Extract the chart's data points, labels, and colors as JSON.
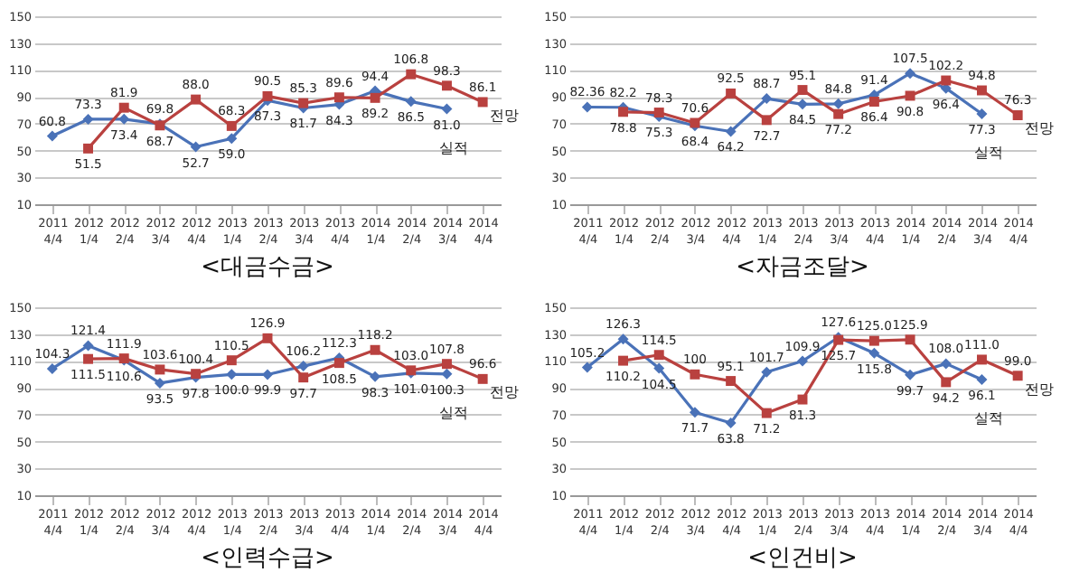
{
  "chart_data": [
    {
      "type": "line",
      "title": "<대금수금>",
      "categories": [
        "2011 4/4",
        "2012 1/4",
        "2012 2/4",
        "2012 3/4",
        "2012 4/4",
        "2013 1/4",
        "2013 2/4",
        "2013 3/4",
        "2013 4/4",
        "2014 1/4",
        "2014 2/4",
        "2014 3/4",
        "2014 4/4"
      ],
      "series": [
        {
          "name": "실적",
          "color": "#4a72b8",
          "marker": "diamond",
          "values": [
            60.8,
            73.3,
            73.4,
            69.8,
            52.7,
            59.0,
            87.3,
            81.7,
            84.3,
            94.4,
            86.5,
            81.0,
            null
          ],
          "value_labels": [
            "60.8",
            "73.3",
            "73.4",
            "69.8",
            "52.7",
            "59.0",
            "87.3",
            "81.7",
            "84.3",
            "94.4",
            "86.5",
            "81.0",
            null
          ]
        },
        {
          "name": "전망",
          "color": "#b9413f",
          "marker": "square",
          "values": [
            null,
            51.5,
            81.9,
            68.7,
            88.0,
            68.3,
            90.5,
            85.3,
            89.6,
            89.2,
            106.8,
            98.3,
            86.1
          ],
          "value_labels": [
            null,
            "51.5",
            "81.9",
            "68.7",
            "88.0",
            "68.3",
            "90.5",
            "85.3",
            "89.6",
            "89.2",
            "106.8",
            "98.3",
            "86.1"
          ]
        }
      ],
      "ylim": [
        10,
        150
      ],
      "yticks": [
        10,
        30,
        50,
        70,
        90,
        110,
        130,
        150
      ],
      "grid": "y",
      "legend": false
    },
    {
      "type": "line",
      "title": "<자금조달>",
      "categories": [
        "2011 4/4",
        "2012 1/4",
        "2012 2/4",
        "2012 3/4",
        "2012 4/4",
        "2013 1/4",
        "2013 2/4",
        "2013 3/4",
        "2013 4/4",
        "2014 1/4",
        "2014 2/4",
        "2014 3/4",
        "2014 4/4"
      ],
      "series": [
        {
          "name": "실적",
          "color": "#4a72b8",
          "marker": "diamond",
          "values": [
            82.36,
            82.2,
            75.3,
            68.4,
            64.2,
            88.7,
            84.5,
            84.8,
            91.4,
            107.5,
            96.4,
            77.3,
            null
          ],
          "value_labels": [
            "82.36",
            "82.2",
            "75.3",
            "68.4",
            "64.2",
            "88.7",
            "84.5",
            "84.8",
            "91.4",
            "107.5",
            "96.4",
            "77.3",
            null
          ]
        },
        {
          "name": "전망",
          "color": "#b9413f",
          "marker": "square",
          "values": [
            null,
            78.8,
            78.3,
            70.6,
            92.5,
            72.7,
            95.1,
            77.2,
            86.4,
            90.8,
            102.2,
            94.8,
            76.3
          ],
          "value_labels": [
            null,
            "78.8",
            "78.3",
            "70.6",
            "92.5",
            "72.7",
            "95.1",
            "77.2",
            "86.4",
            "90.8",
            "102.2",
            "94.8",
            "76.3"
          ]
        }
      ],
      "ylim": [
        10,
        150
      ],
      "yticks": [
        10,
        30,
        50,
        70,
        90,
        110,
        130,
        150
      ],
      "grid": "y",
      "legend": false
    },
    {
      "type": "line",
      "title": "<인력수급>",
      "categories": [
        "2011 4/4",
        "2012 1/4",
        "2012 2/4",
        "2012 3/4",
        "2012 4/4",
        "2013 1/4",
        "2013 2/4",
        "2013 3/4",
        "2013 4/4",
        "2014 1/4",
        "2014 2/4",
        "2014 3/4",
        "2014 4/4"
      ],
      "series": [
        {
          "name": "실적",
          "color": "#4a72b8",
          "marker": "diamond",
          "values": [
            104.3,
            121.4,
            110.6,
            93.5,
            97.8,
            100.0,
            99.9,
            106.2,
            112.3,
            98.3,
            101.0,
            100.3,
            null
          ],
          "value_labels": [
            "104.3",
            "121.4",
            "110.6",
            "93.5",
            "97.8",
            "100.0",
            "99.9",
            "106.2",
            "112.3",
            "98.3",
            "101.0",
            "100.3",
            null
          ]
        },
        {
          "name": "전망",
          "color": "#b9413f",
          "marker": "square",
          "values": [
            null,
            111.5,
            111.9,
            103.6,
            100.4,
            110.5,
            126.9,
            97.7,
            108.5,
            118.2,
            103.0,
            107.8,
            96.6
          ],
          "value_labels": [
            null,
            "111.5",
            "111.9",
            "103.6",
            "100.4",
            "110.5",
            "126.9",
            "97.7",
            "108.5",
            "118.2",
            "103.0",
            "107.8",
            "96.6"
          ]
        }
      ],
      "ylim": [
        10,
        150
      ],
      "yticks": [
        10,
        30,
        50,
        70,
        90,
        110,
        130,
        150
      ],
      "grid": "y",
      "legend": false
    },
    {
      "type": "line",
      "title": "<인건비>",
      "categories": [
        "2011 4/4",
        "2012 1/4",
        "2012 2/4",
        "2012 3/4",
        "2012 4/4",
        "2013 1/4",
        "2013 2/4",
        "2013 3/4",
        "2013 4/4",
        "2014 1/4",
        "2014 2/4",
        "2014 3/4",
        "2014 4/4"
      ],
      "series": [
        {
          "name": "실적",
          "color": "#4a72b8",
          "marker": "diamond",
          "values": [
            105.2,
            126.3,
            104.5,
            71.7,
            63.8,
            101.7,
            109.9,
            127.6,
            115.8,
            99.7,
            108.0,
            96.1,
            null
          ],
          "value_labels": [
            "105.2",
            "126.3",
            "104.5",
            "71.7",
            "63.8",
            "101.7",
            "109.9",
            "127.6",
            "115.8",
            "99.7",
            "108.0",
            "96.1",
            null
          ]
        },
        {
          "name": "전망",
          "color": "#b9413f",
          "marker": "square",
          "values": [
            null,
            110.2,
            114.5,
            100,
            95.1,
            71.2,
            81.3,
            125.7,
            125.0,
            125.9,
            94.2,
            111.0,
            99.0
          ],
          "value_labels": [
            null,
            "110.2",
            "114.5",
            "100",
            "95.1",
            "71.2",
            "81.3",
            "125.7",
            "125.0",
            "125.9",
            "94.2",
            "111.0",
            "99.0"
          ]
        }
      ],
      "ylim": [
        10,
        150
      ],
      "yticks": [
        10,
        30,
        50,
        70,
        90,
        110,
        130,
        150
      ],
      "grid": "y",
      "legend": false
    }
  ]
}
